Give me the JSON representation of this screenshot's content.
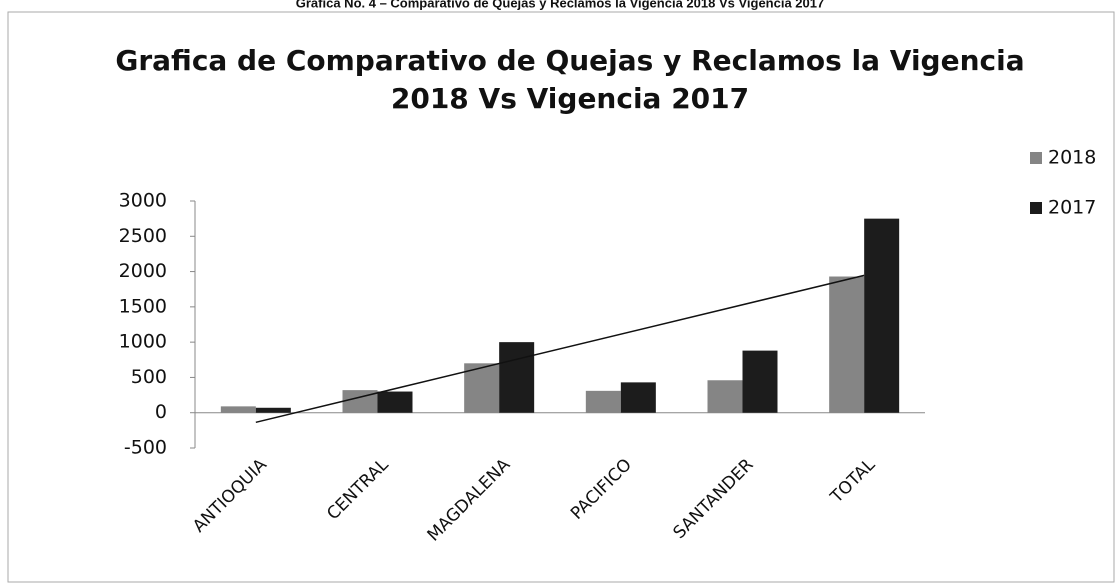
{
  "caption": "Grafica No. 4 – Comparativo de Quejas y Reclamos la Vigencia 2018 Vs Vigencia 2017",
  "chart_data": {
    "type": "bar",
    "title": [
      "Grafica de Comparativo de Quejas y Reclamos la Vigencia",
      "2018 Vs Vigencia 2017"
    ],
    "categories": [
      "ANTIOQUIA",
      "CENTRAL",
      "MAGDALENA",
      "PACIFICO",
      "SANTANDER",
      "TOTAL"
    ],
    "series": [
      {
        "name": "2018",
        "color": "#858585",
        "values": [
          90,
          320,
          700,
          310,
          460,
          1930
        ]
      },
      {
        "name": "2017",
        "color": "#1c1c1c",
        "values": [
          70,
          300,
          1000,
          430,
          880,
          2750
        ],
        "trendline": "linear"
      }
    ],
    "ylim": [
      -500,
      3000
    ],
    "yticks": [
      -500,
      0,
      500,
      1000,
      1500,
      2000,
      2500,
      3000
    ],
    "legend": "right"
  }
}
